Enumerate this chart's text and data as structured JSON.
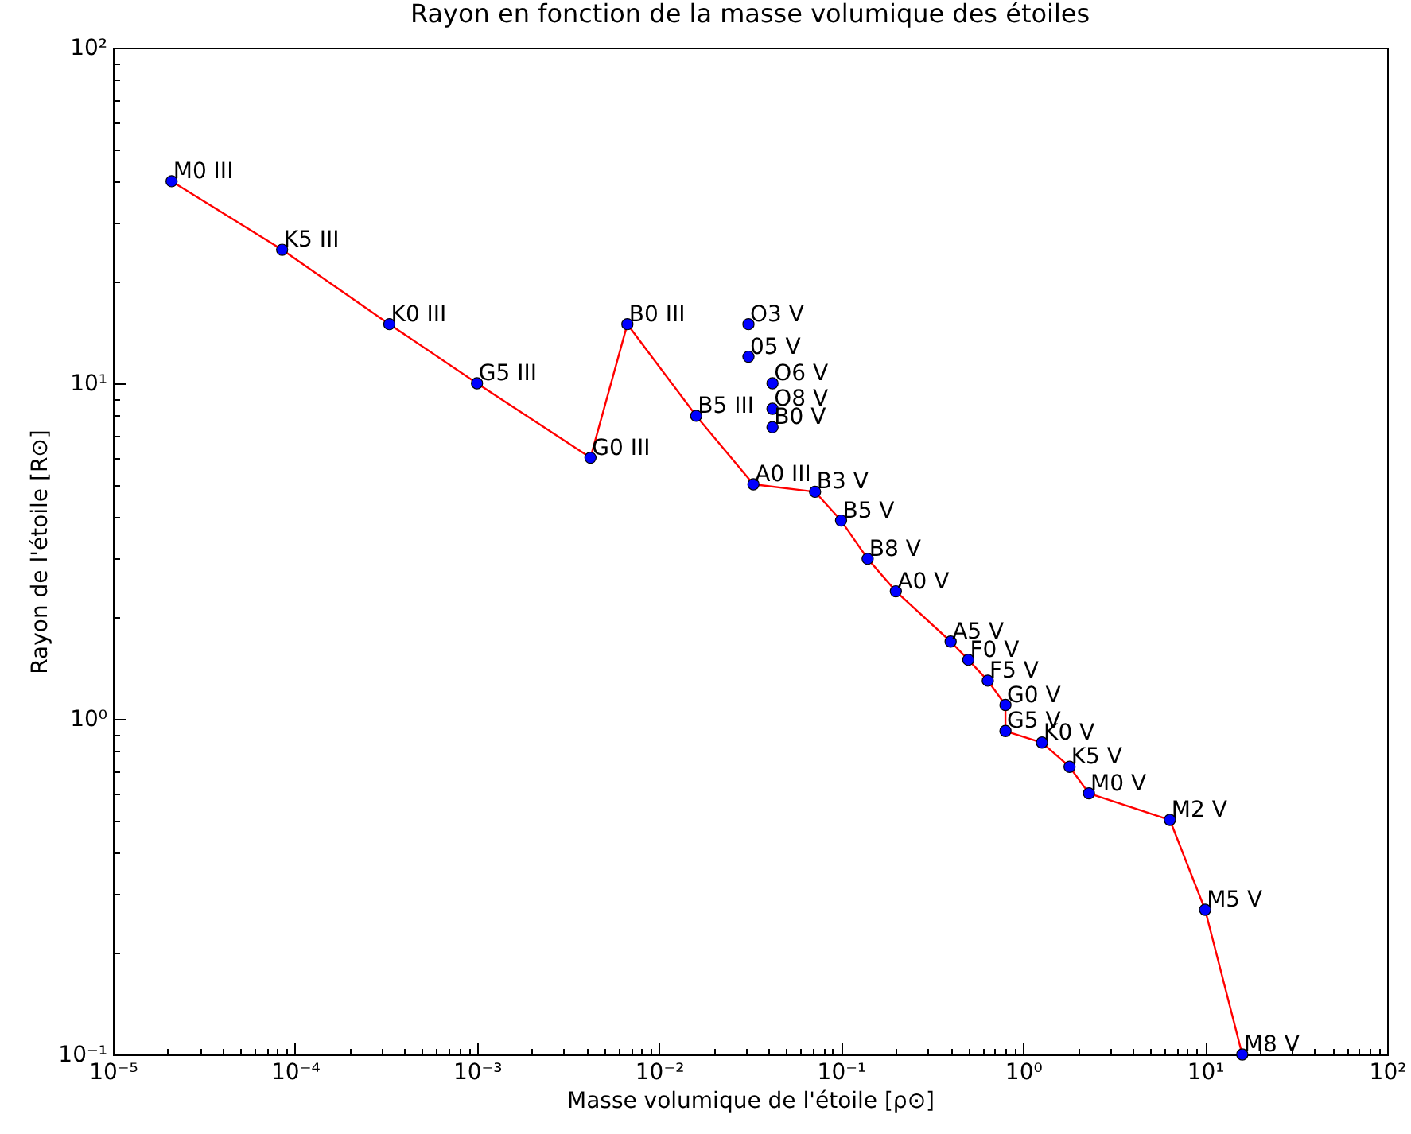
{
  "chart_data": {
    "type": "line",
    "title": "Rayon en fonction de la masse volumique des étoiles",
    "xlabel": "Masse volumique de l'étoile [ρ⊙]",
    "ylabel": "Rayon de l'étoile [R⊙]",
    "log": "xy",
    "grid": false,
    "xlim": [
      1e-05,
      100
    ],
    "ylim": [
      0.1,
      100
    ],
    "xticks": [
      {
        "value": 1e-05,
        "label": "10⁻⁵"
      },
      {
        "value": 2e-05,
        "label": null
      },
      {
        "value": 3e-05,
        "label": null
      },
      {
        "value": 4e-05,
        "label": null
      },
      {
        "value": 5e-05,
        "label": null
      },
      {
        "value": 6e-05,
        "label": null
      },
      {
        "value": 7e-05,
        "label": null
      },
      {
        "value": 8e-05,
        "label": null
      },
      {
        "value": 9e-05,
        "label": null
      },
      {
        "value": 0.0001,
        "label": "10⁻⁴"
      },
      {
        "value": 0.0002,
        "label": null
      },
      {
        "value": 0.0003,
        "label": null
      },
      {
        "value": 0.0004,
        "label": null
      },
      {
        "value": 0.0005,
        "label": null
      },
      {
        "value": 0.0006,
        "label": null
      },
      {
        "value": 0.0007,
        "label": null
      },
      {
        "value": 0.0008,
        "label": null
      },
      {
        "value": 0.0009,
        "label": null
      },
      {
        "value": 0.001,
        "label": "10⁻³"
      },
      {
        "value": 0.002,
        "label": null
      },
      {
        "value": 0.003,
        "label": null
      },
      {
        "value": 0.004,
        "label": null
      },
      {
        "value": 0.005,
        "label": null
      },
      {
        "value": 0.006,
        "label": null
      },
      {
        "value": 0.007,
        "label": null
      },
      {
        "value": 0.008,
        "label": null
      },
      {
        "value": 0.009,
        "label": null
      },
      {
        "value": 0.01,
        "label": "10⁻²"
      },
      {
        "value": 0.02,
        "label": null
      },
      {
        "value": 0.03,
        "label": null
      },
      {
        "value": 0.04,
        "label": null
      },
      {
        "value": 0.05,
        "label": null
      },
      {
        "value": 0.06,
        "label": null
      },
      {
        "value": 0.07,
        "label": null
      },
      {
        "value": 0.08,
        "label": null
      },
      {
        "value": 0.09,
        "label": null
      },
      {
        "value": 0.1,
        "label": "10⁻¹"
      },
      {
        "value": 0.2,
        "label": null
      },
      {
        "value": 0.3,
        "label": null
      },
      {
        "value": 0.4,
        "label": null
      },
      {
        "value": 0.5,
        "label": null
      },
      {
        "value": 0.6,
        "label": null
      },
      {
        "value": 0.7,
        "label": null
      },
      {
        "value": 0.8,
        "label": null
      },
      {
        "value": 0.9,
        "label": null
      },
      {
        "value": 1,
        "label": "10⁰"
      },
      {
        "value": 2,
        "label": null
      },
      {
        "value": 3,
        "label": null
      },
      {
        "value": 4,
        "label": null
      },
      {
        "value": 5,
        "label": null
      },
      {
        "value": 6,
        "label": null
      },
      {
        "value": 7,
        "label": null
      },
      {
        "value": 8,
        "label": null
      },
      {
        "value": 9,
        "label": null
      },
      {
        "value": 10,
        "label": "10¹"
      },
      {
        "value": 20,
        "label": null
      },
      {
        "value": 30,
        "label": null
      },
      {
        "value": 40,
        "label": null
      },
      {
        "value": 50,
        "label": null
      },
      {
        "value": 60,
        "label": null
      },
      {
        "value": 70,
        "label": null
      },
      {
        "value": 80,
        "label": null
      },
      {
        "value": 90,
        "label": null
      },
      {
        "value": 100,
        "label": "10²"
      }
    ],
    "yticks": [
      {
        "value": 0.1,
        "label": "10⁻¹"
      },
      {
        "value": 0.2,
        "label": null
      },
      {
        "value": 0.3,
        "label": null
      },
      {
        "value": 0.4,
        "label": null
      },
      {
        "value": 0.5,
        "label": null
      },
      {
        "value": 0.6,
        "label": null
      },
      {
        "value": 0.7,
        "label": null
      },
      {
        "value": 0.8,
        "label": null
      },
      {
        "value": 0.9,
        "label": null
      },
      {
        "value": 1,
        "label": "10⁰"
      },
      {
        "value": 2,
        "label": null
      },
      {
        "value": 3,
        "label": null
      },
      {
        "value": 4,
        "label": null
      },
      {
        "value": 5,
        "label": null
      },
      {
        "value": 6,
        "label": null
      },
      {
        "value": 7,
        "label": null
      },
      {
        "value": 8,
        "label": null
      },
      {
        "value": 9,
        "label": null
      },
      {
        "value": 10,
        "label": "10¹"
      },
      {
        "value": 20,
        "label": null
      },
      {
        "value": 30,
        "label": null
      },
      {
        "value": 40,
        "label": null
      },
      {
        "value": 50,
        "label": null
      },
      {
        "value": 60,
        "label": null
      },
      {
        "value": 70,
        "label": null
      },
      {
        "value": 80,
        "label": null
      },
      {
        "value": 90,
        "label": null
      },
      {
        "value": 100,
        "label": "10²"
      }
    ],
    "series": [
      {
        "type": "line",
        "color": "#ff0000",
        "marker": "none",
        "line_style": "solid",
        "x": [
          2.1e-05,
          8.5e-05,
          0.00033,
          0.001,
          0.0042,
          0.0067,
          0.016,
          0.033,
          0.072,
          0.1,
          0.14,
          0.2,
          0.4,
          0.5,
          0.64,
          0.8,
          0.8,
          1.27,
          1.8,
          2.3,
          6.4,
          10,
          16
        ],
        "values": [
          40,
          25,
          15,
          10,
          6,
          15,
          8,
          5,
          4.75,
          3.9,
          3,
          2.4,
          1.7,
          1.5,
          1.3,
          1.1,
          0.92,
          0.85,
          0.72,
          0.6,
          0.5,
          0.27,
          0.1
        ]
      },
      {
        "type": "scatter",
        "color": "#0000ff",
        "marker": "circle",
        "x": [
          2.1e-05,
          8.5e-05,
          0.00033,
          0.001,
          0.0042,
          0.0067,
          0.016,
          0.033,
          0.031,
          0.031,
          0.042,
          0.042,
          0.042,
          0.072,
          0.1,
          0.14,
          0.2,
          0.4,
          0.5,
          0.64,
          0.8,
          0.8,
          1.27,
          1.8,
          2.3,
          6.4,
          10,
          16
        ],
        "values": [
          40,
          25,
          15,
          10,
          6,
          15,
          8,
          5,
          15,
          12,
          10,
          8.4,
          7.4,
          4.75,
          3.9,
          3,
          2.4,
          1.7,
          1.5,
          1.3,
          1.1,
          0.92,
          0.85,
          0.72,
          0.6,
          0.5,
          0.27,
          0.1
        ]
      }
    ],
    "annotations": [
      {
        "text": "M0 III",
        "x": 2.1e-05,
        "y": 40
      },
      {
        "text": "K5 III",
        "x": 8.5e-05,
        "y": 25
      },
      {
        "text": "K0 III",
        "x": 0.00033,
        "y": 15
      },
      {
        "text": "G5 III",
        "x": 0.001,
        "y": 10
      },
      {
        "text": "G0 III",
        "x": 0.0042,
        "y": 6
      },
      {
        "text": "B0 III",
        "x": 0.0067,
        "y": 15
      },
      {
        "text": "B5 III",
        "x": 0.016,
        "y": 8
      },
      {
        "text": "A0 III",
        "x": 0.033,
        "y": 5
      },
      {
        "text": "O3 V",
        "x": 0.031,
        "y": 15
      },
      {
        "text": "05 V",
        "x": 0.031,
        "y": 12
      },
      {
        "text": "O6 V",
        "x": 0.042,
        "y": 10
      },
      {
        "text": "O8 V",
        "x": 0.042,
        "y": 8.4
      },
      {
        "text": "B0 V",
        "x": 0.042,
        "y": 7.4
      },
      {
        "text": "B3 V",
        "x": 0.072,
        "y": 4.75
      },
      {
        "text": "B5 V",
        "x": 0.1,
        "y": 3.9
      },
      {
        "text": "B8 V",
        "x": 0.14,
        "y": 3
      },
      {
        "text": "A0 V",
        "x": 0.2,
        "y": 2.4
      },
      {
        "text": "A5 V",
        "x": 0.4,
        "y": 1.7
      },
      {
        "text": "F0 V",
        "x": 0.5,
        "y": 1.5
      },
      {
        "text": "F5 V",
        "x": 0.64,
        "y": 1.3
      },
      {
        "text": "G0 V",
        "x": 0.8,
        "y": 1.1
      },
      {
        "text": "G5 V",
        "x": 0.8,
        "y": 0.92
      },
      {
        "text": "K0 V",
        "x": 1.27,
        "y": 0.85
      },
      {
        "text": "K5 V",
        "x": 1.8,
        "y": 0.72
      },
      {
        "text": "M0 V",
        "x": 2.3,
        "y": 0.6
      },
      {
        "text": "M2 V",
        "x": 6.4,
        "y": 0.5
      },
      {
        "text": "M5 V",
        "x": 10,
        "y": 0.27
      },
      {
        "text": "M8 V",
        "x": 16,
        "y": 0.1
      }
    ]
  }
}
